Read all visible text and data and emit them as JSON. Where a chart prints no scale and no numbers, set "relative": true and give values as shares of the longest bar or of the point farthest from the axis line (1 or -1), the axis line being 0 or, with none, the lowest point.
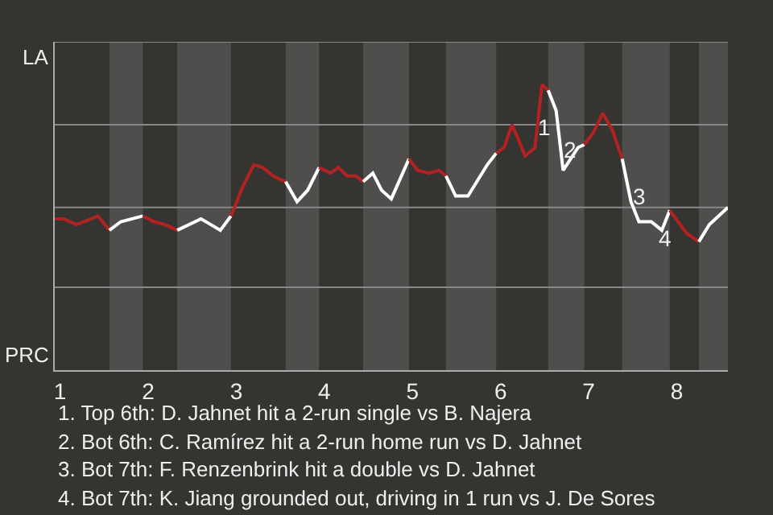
{
  "chart_data": {
    "type": "line",
    "relative": true,
    "xlim": [
      0.94,
      8.58
    ],
    "xticks": [
      1,
      2,
      3,
      4,
      5,
      6,
      7,
      8
    ],
    "marker": "none",
    "line_style": "solid",
    "ref_lines": [
      {
        "axis": "y",
        "value": 0.29,
        "color": "#888888"
      },
      {
        "axis": "y",
        "value": 0.57,
        "color": "#888888"
      },
      {
        "axis": "y",
        "value": 0.86,
        "color": "#888888"
      },
      {
        "axis": "y",
        "value": 1.15,
        "color": "#888888"
      }
    ],
    "bands": [
      {
        "axis": "x",
        "from": 1.56,
        "to": 1.94,
        "color": "#4f4e4c"
      },
      {
        "axis": "x",
        "from": 2.33,
        "to": 2.94,
        "color": "#4f4e4c"
      },
      {
        "axis": "x",
        "from": 3.56,
        "to": 3.94,
        "color": "#4f4e4c"
      },
      {
        "axis": "x",
        "from": 4.44,
        "to": 4.96,
        "color": "#4f4e4c"
      },
      {
        "axis": "x",
        "from": 5.38,
        "to": 5.95,
        "color": "#4f4e4c"
      },
      {
        "axis": "x",
        "from": 6.54,
        "to": 6.95,
        "color": "#4f4e4c"
      },
      {
        "axis": "x",
        "from": 7.38,
        "to": 7.92,
        "color": "#4f4e4c"
      },
      {
        "axis": "x",
        "from": 8.25,
        "to": 8.58,
        "color": "#4f4e4c"
      }
    ],
    "series": [
      {
        "color": "#b22222",
        "x": [
          0.94,
          1.04,
          1.19,
          1.43,
          1.56
        ],
        "values": [
          0.53,
          0.53,
          0.51,
          0.54,
          0.49
        ]
      },
      {
        "color": "#ffffff",
        "x": [
          1.56,
          1.69,
          1.94
        ],
        "values": [
          0.49,
          0.52,
          0.54
        ]
      },
      {
        "color": "#b22222",
        "x": [
          1.94,
          2.07,
          2.19,
          2.33
        ],
        "values": [
          0.54,
          0.52,
          0.51,
          0.49
        ]
      },
      {
        "color": "#ffffff",
        "x": [
          2.33,
          2.6,
          2.82,
          2.94
        ],
        "values": [
          0.49,
          0.53,
          0.49,
          0.54
        ]
      },
      {
        "color": "#b22222",
        "x": [
          2.94,
          3.07,
          3.2,
          3.3,
          3.42,
          3.56
        ],
        "values": [
          0.54,
          0.64,
          0.72,
          0.71,
          0.68,
          0.66
        ]
      },
      {
        "color": "#ffffff",
        "x": [
          3.56,
          3.69,
          3.81,
          3.94
        ],
        "values": [
          0.66,
          0.59,
          0.63,
          0.71
        ]
      },
      {
        "color": "#b22222",
        "x": [
          3.94,
          4.07,
          4.16,
          4.26,
          4.36,
          4.44
        ],
        "values": [
          0.71,
          0.69,
          0.71,
          0.68,
          0.68,
          0.66
        ]
      },
      {
        "color": "#ffffff",
        "x": [
          4.44,
          4.55,
          4.65,
          4.76,
          4.96
        ],
        "values": [
          0.66,
          0.69,
          0.63,
          0.6,
          0.74
        ]
      },
      {
        "color": "#b22222",
        "x": [
          4.96,
          5.06,
          5.19,
          5.3,
          5.38
        ],
        "values": [
          0.74,
          0.7,
          0.69,
          0.7,
          0.68
        ]
      },
      {
        "color": "#ffffff",
        "x": [
          5.38,
          5.49,
          5.63,
          5.85,
          5.95
        ],
        "values": [
          0.68,
          0.61,
          0.61,
          0.72,
          0.76
        ]
      },
      {
        "color": "#b22222",
        "x": [
          5.95,
          6.04,
          6.13,
          6.28,
          6.39,
          6.47,
          6.54
        ],
        "values": [
          0.76,
          0.78,
          0.86,
          0.75,
          0.78,
          1,
          0.98
        ]
      },
      {
        "color": "#ffffff",
        "x": [
          6.54,
          6.63,
          6.71,
          6.88,
          6.95
        ],
        "values": [
          0.98,
          0.91,
          0.7,
          0.78,
          0.79
        ]
      },
      {
        "color": "#b22222",
        "x": [
          6.95,
          7.05,
          7.16,
          7.27,
          7.38
        ],
        "values": [
          0.79,
          0.83,
          0.9,
          0.84,
          0.74
        ]
      },
      {
        "color": "#ffffff",
        "x": [
          7.38,
          7.48,
          7.57,
          7.71,
          7.83,
          7.92
        ],
        "values": [
          0.74,
          0.59,
          0.52,
          0.52,
          0.49,
          0.56
        ]
      },
      {
        "color": "#b22222",
        "x": [
          7.92,
          8.11,
          8.25
        ],
        "values": [
          0.56,
          0.48,
          0.45
        ]
      },
      {
        "color": "#ffffff",
        "x": [
          8.25,
          8.37,
          8.58
        ],
        "values": [
          0.45,
          0.51,
          0.57
        ]
      }
    ],
    "annotations": [
      "LA",
      "PRC",
      {
        "text": "1",
        "x": 6.49,
        "y": 0.85
      },
      {
        "text": "2",
        "x": 6.78,
        "y": 0.77
      },
      {
        "text": "3",
        "x": 7.58,
        "y": 0.61
      },
      {
        "text": "4",
        "x": 7.86,
        "y": 0.46
      },
      "1. Top 6th: D. Jahnet hit a 2-run single vs B. Najera",
      "2. Bot 6th: C. Ramírez hit a 2-run home run vs D. Jahnet",
      "3. Bot 7th: F. Renzenbrink hit a double vs D. Jahnet",
      "4. Bot 7th: K. Jiang grounded out, driving in 1 run vs J. De Sores"
    ]
  }
}
